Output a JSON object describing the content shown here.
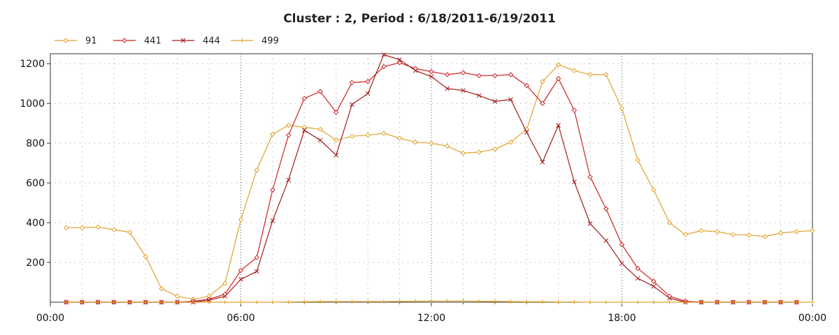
{
  "chart_data": {
    "type": "line",
    "title": "Cluster : 2, Period : 6/18/2011-6/19/2011",
    "xlabel": "",
    "ylabel": "",
    "xlim_hours": [
      0,
      24
    ],
    "ylim": [
      0,
      1250
    ],
    "x_ticks": [
      {
        "value": 0,
        "label": "00:00"
      },
      {
        "value": 6,
        "label": "06:00"
      },
      {
        "value": 12,
        "label": "12:00"
      },
      {
        "value": 18,
        "label": "18:00"
      },
      {
        "value": 24,
        "label": "00:00"
      }
    ],
    "y_ticks": [
      200,
      400,
      600,
      800,
      1000,
      1200
    ],
    "grid": true,
    "legend_position": "top-left",
    "series": [
      {
        "name": "91",
        "color": "#e0a22c",
        "marker": "diamond",
        "x": [
          0.5,
          1,
          1.5,
          2,
          2.5,
          3,
          3.5,
          4,
          4.5,
          5,
          5.5,
          6,
          6.5,
          7,
          7.5,
          8,
          8.5,
          9,
          9.5,
          10,
          10.5,
          11,
          11.5,
          12,
          12.5,
          13,
          13.5,
          14,
          14.5,
          15,
          15.5,
          16,
          16.5,
          17,
          17.5,
          18,
          18.5,
          19,
          19.5,
          20,
          20.5,
          21,
          21.5,
          22,
          22.5,
          23,
          23.5,
          24
        ],
        "y": [
          375,
          375,
          378,
          365,
          352,
          230,
          68,
          30,
          15,
          30,
          95,
          415,
          665,
          845,
          890,
          880,
          870,
          815,
          835,
          840,
          850,
          825,
          805,
          800,
          785,
          750,
          755,
          770,
          805,
          870,
          1110,
          1195,
          1165,
          1145,
          1145,
          975,
          715,
          565,
          400,
          340,
          360,
          355,
          340,
          338,
          330,
          348,
          355,
          360
        ]
      },
      {
        "name": "441",
        "color": "#d12121",
        "marker": "diamond",
        "x": [
          0.5,
          1,
          1.5,
          2,
          2.5,
          3,
          3.5,
          4,
          4.5,
          5,
          5.5,
          6,
          6.5,
          7,
          7.5,
          8,
          8.5,
          9,
          9.5,
          10,
          10.5,
          11,
          11.5,
          12,
          12.5,
          13,
          13.5,
          14,
          14.5,
          15,
          15.5,
          16,
          16.5,
          17,
          17.5,
          18,
          18.5,
          19,
          19.5,
          20,
          20.5,
          21,
          21.5,
          22,
          22.5,
          23,
          23.5
        ],
        "y": [
          0,
          0,
          0,
          0,
          0,
          0,
          0,
          0,
          5,
          15,
          40,
          160,
          225,
          565,
          840,
          1025,
          1060,
          955,
          1105,
          1110,
          1185,
          1205,
          1175,
          1160,
          1145,
          1155,
          1140,
          1140,
          1145,
          1090,
          1000,
          1125,
          965,
          630,
          470,
          290,
          170,
          105,
          30,
          5,
          0,
          0,
          0,
          0,
          0,
          0,
          0
        ]
      },
      {
        "name": "444",
        "color": "#a21a1a",
        "marker": "x",
        "x": [
          0.5,
          1,
          1.5,
          2,
          2.5,
          3,
          3.5,
          4,
          4.5,
          5,
          5.5,
          6,
          6.5,
          7,
          7.5,
          8,
          8.5,
          9,
          9.5,
          10,
          10.5,
          11,
          11.5,
          12,
          12.5,
          13,
          13.5,
          14,
          14.5,
          15,
          15.5,
          16,
          16.5,
          17,
          17.5,
          18,
          18.5,
          19,
          19.5,
          20,
          20.5,
          21,
          21.5,
          22,
          22.5,
          23,
          23.5
        ],
        "y": [
          0,
          0,
          0,
          0,
          0,
          0,
          0,
          0,
          0,
          10,
          30,
          115,
          155,
          410,
          615,
          865,
          815,
          740,
          995,
          1050,
          1245,
          1220,
          1165,
          1135,
          1075,
          1065,
          1040,
          1010,
          1020,
          855,
          705,
          890,
          605,
          395,
          310,
          195,
          120,
          80,
          20,
          0,
          0,
          0,
          0,
          0,
          0,
          0,
          0
        ]
      },
      {
        "name": "499",
        "color": "#e0a22c",
        "marker": "plus",
        "x": [
          0.5,
          1,
          1.5,
          2,
          2.5,
          3,
          3.5,
          4,
          4.5,
          5,
          5.5,
          6,
          6.5,
          7,
          7.5,
          8,
          8.5,
          9,
          9.5,
          10,
          10.5,
          11,
          11.5,
          12,
          12.5,
          13,
          13.5,
          14,
          14.5,
          15,
          15.5,
          16,
          16.5,
          17,
          17.5,
          18,
          18.5,
          19,
          19.5,
          20,
          20.5,
          21,
          21.5,
          22,
          22.5,
          23,
          23.5,
          24
        ],
        "y": [
          0,
          0,
          0,
          0,
          0,
          0,
          0,
          0,
          0,
          0,
          0,
          0,
          0,
          0,
          1,
          2,
          3,
          3,
          3,
          3,
          3,
          4,
          5,
          6,
          6,
          6,
          5,
          4,
          3,
          2,
          2,
          1,
          1,
          0,
          0,
          0,
          0,
          0,
          0,
          0,
          0,
          0,
          0,
          0,
          0,
          0,
          0,
          0
        ]
      }
    ]
  }
}
